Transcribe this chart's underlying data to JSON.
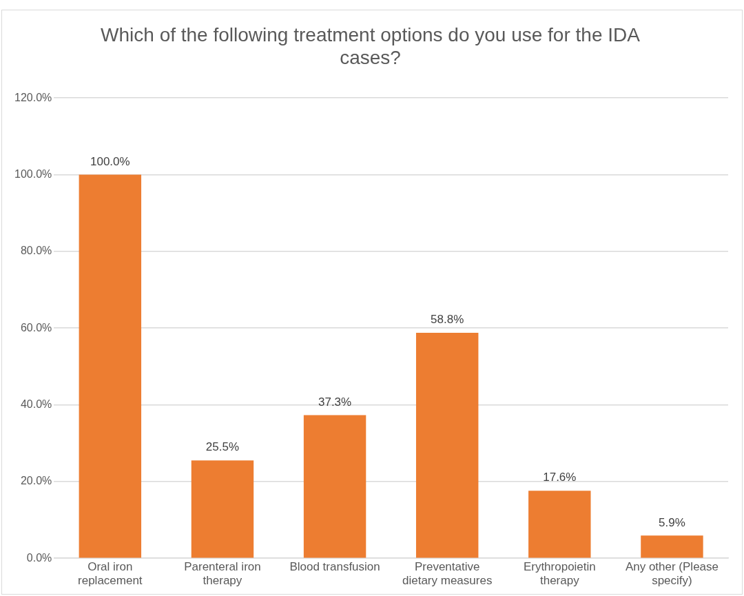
{
  "chart_data": {
    "type": "bar",
    "title": "Which of the following treatment options do you use for the IDA cases?",
    "categories": [
      "Oral iron replacement",
      "Parenteral iron therapy",
      "Blood transfusion",
      "Preventative dietary measures",
      "Erythropoietin therapy",
      "Any other (Please specify)"
    ],
    "values": [
      100,
      25.5,
      37.3,
      58.8,
      17.6,
      5.9
    ],
    "value_labels": [
      "100.0%",
      "25.5%",
      "37.3%",
      "58.8%",
      "17.6%",
      "5.9%"
    ],
    "color": "#ed7d31",
    "ylim": [
      0,
      120
    ],
    "yticks": [
      {
        "value": 0,
        "label": "0.0%"
      },
      {
        "value": 20,
        "label": "20.0%"
      },
      {
        "value": 40,
        "label": "40.0%"
      },
      {
        "value": 60,
        "label": "60.0%"
      },
      {
        "value": 80,
        "label": "80.0%"
      },
      {
        "value": 100,
        "label": "100.0%"
      },
      {
        "value": 120,
        "label": "120.0%"
      }
    ],
    "grid": "y",
    "legend": false
  }
}
